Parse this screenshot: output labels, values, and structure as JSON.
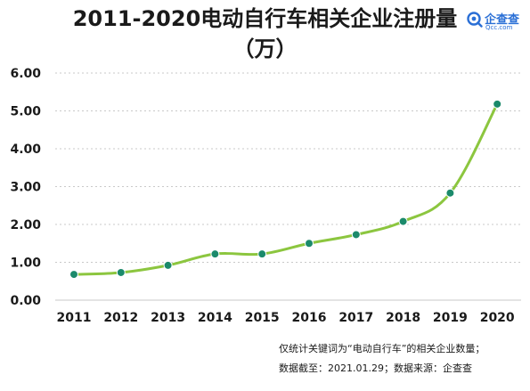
{
  "header": {
    "title_line1": "2011-2020电动自行车相关企业注册量",
    "title_line2": "（万）"
  },
  "brand": {
    "name": "企查查",
    "url": "Qcc.com"
  },
  "colors": {
    "line": "#8cc63f",
    "marker": "#1b8a6b",
    "grid": "#c9c9c9",
    "axis": "#1a1a1a"
  },
  "chart_data": {
    "type": "line",
    "title": "2011-2020电动自行车相关企业注册量（万）",
    "xlabel": "",
    "ylabel": "",
    "x": [
      "2011",
      "2012",
      "2013",
      "2014",
      "2015",
      "2016",
      "2017",
      "2018",
      "2019",
      "2020"
    ],
    "y": [
      0.68,
      0.73,
      0.92,
      1.22,
      1.22,
      1.5,
      1.73,
      2.08,
      2.83,
      5.18
    ],
    "ylim": [
      0,
      6
    ],
    "yticks": [
      "0.00",
      "1.00",
      "2.00",
      "3.00",
      "4.00",
      "5.00",
      "6.00"
    ],
    "grid": "horizontal-dotted",
    "legend": "none"
  },
  "footnotes": {
    "line1": "仅统计关键词为“电动自行车”的相关企业数量；",
    "line2": "数据截至：2021.01.29；数据来源：企查查"
  }
}
